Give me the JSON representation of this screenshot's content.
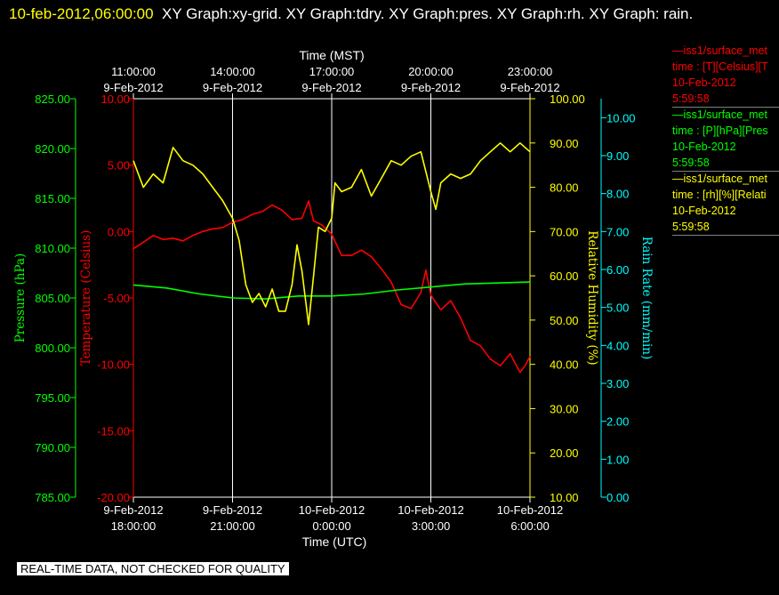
{
  "header": {
    "timestamp": "10-feb-2012,06:00:00",
    "graph_list": "XY Graph:xy-grid.  XY Graph:tdry.  XY Graph:pres.  XY Graph:rh.  XY Graph: rain."
  },
  "colors": {
    "background": "#000000",
    "temperature": "#ff0000",
    "pressure": "#00ff00",
    "humidity": "#ffff00",
    "rain": "#00ffff",
    "grid": "#ffffff"
  },
  "legend": [
    {
      "line": "—iss1/surface_met",
      "desc": "time : [T][Celsius][T",
      "date": "10-Feb-2012",
      "time": "5:59:58",
      "color": "#ff0000"
    },
    {
      "line": "—iss1/surface_met",
      "desc": "time : [P][hPa][Pres",
      "date": "10-Feb-2012",
      "time": "5:59:58",
      "color": "#00ff00"
    },
    {
      "line": "—iss1/surface_met",
      "desc": "time : [rh][%][Relati",
      "date": "10-Feb-2012",
      "time": "5:59:58",
      "color": "#ffff00"
    }
  ],
  "warning": "REAL-TIME DATA, NOT CHECKED FOR QUALITY",
  "chart_data": {
    "type": "line",
    "x_top_title": "Time (MST)",
    "x_bottom_title": "Time (UTC)",
    "x_range_utc_hours_from_2012_02_09_00": [
      18,
      30
    ],
    "x_ticks_top": [
      {
        "time": "11:00:00",
        "date": "9-Feb-2012"
      },
      {
        "time": "14:00:00",
        "date": "9-Feb-2012"
      },
      {
        "time": "17:00:00",
        "date": "9-Feb-2012"
      },
      {
        "time": "20:00:00",
        "date": "9-Feb-2012"
      },
      {
        "time": "23:00:00",
        "date": "9-Feb-2012"
      }
    ],
    "x_ticks_bottom": [
      {
        "date": "9-Feb-2012",
        "time": "18:00:00"
      },
      {
        "date": "9-Feb-2012",
        "time": "21:00:00"
      },
      {
        "date": "10-Feb-2012",
        "time": "0:00:00"
      },
      {
        "date": "10-Feb-2012",
        "time": "3:00:00"
      },
      {
        "date": "10-Feb-2012",
        "time": "6:00:00"
      }
    ],
    "grid_vertical": true,
    "axes": [
      {
        "key": "pressure",
        "label": "Pressure (hPa)",
        "range": [
          785,
          825
        ],
        "ticks": [
          "785.00",
          "790.00",
          "795.00",
          "800.00",
          "805.00",
          "810.00",
          "815.00",
          "820.00",
          "825.00"
        ]
      },
      {
        "key": "temperature",
        "label": "Temperature (Celsius)",
        "range": [
          -20,
          10
        ],
        "ticks": [
          "-20.00",
          "-15.00",
          "-10.00",
          "-5.00",
          "0.00",
          "5.00",
          "10.00"
        ]
      },
      {
        "key": "humidity",
        "label": "Relative Humidity (%)",
        "range": [
          10,
          100
        ],
        "ticks": [
          "10.00",
          "20.00",
          "30.00",
          "40.00",
          "50.00",
          "60.00",
          "70.00",
          "80.00",
          "90.00",
          "100.00"
        ]
      },
      {
        "key": "rain",
        "label": "Rain Rate (mm/min)",
        "range": [
          0,
          10.5
        ],
        "ticks": [
          "0.00",
          "1.00",
          "2.00",
          "3.00",
          "4.00",
          "5.00",
          "6.00",
          "7.00",
          "8.00",
          "9.00",
          "10.00"
        ]
      }
    ],
    "series": [
      {
        "key": "temperature",
        "name": "iss1/surface_met T",
        "color": "#ff0000",
        "points": [
          [
            18.0,
            -1.3
          ],
          [
            18.3,
            -0.8
          ],
          [
            18.6,
            -0.3
          ],
          [
            18.9,
            -0.6
          ],
          [
            19.2,
            -0.5
          ],
          [
            19.5,
            -0.7
          ],
          [
            19.8,
            -0.3
          ],
          [
            20.1,
            0.0
          ],
          [
            20.4,
            0.2
          ],
          [
            20.7,
            0.3
          ],
          [
            21.0,
            0.7
          ],
          [
            21.3,
            0.9
          ],
          [
            21.6,
            1.3
          ],
          [
            21.9,
            1.5
          ],
          [
            22.2,
            2.0
          ],
          [
            22.5,
            1.6
          ],
          [
            22.8,
            0.9
          ],
          [
            23.1,
            1.0
          ],
          [
            23.3,
            2.3
          ],
          [
            23.45,
            0.8
          ],
          [
            23.7,
            0.5
          ],
          [
            24.0,
            -0.2
          ],
          [
            24.3,
            -1.8
          ],
          [
            24.6,
            -1.8
          ],
          [
            24.9,
            -1.4
          ],
          [
            25.2,
            -1.9
          ],
          [
            25.5,
            -2.8
          ],
          [
            25.8,
            -3.8
          ],
          [
            26.1,
            -5.5
          ],
          [
            26.4,
            -5.8
          ],
          [
            26.7,
            -4.6
          ],
          [
            26.85,
            -2.9
          ],
          [
            27.0,
            -4.8
          ],
          [
            27.3,
            -5.9
          ],
          [
            27.6,
            -5.2
          ],
          [
            27.9,
            -6.5
          ],
          [
            28.2,
            -8.2
          ],
          [
            28.5,
            -8.6
          ],
          [
            28.8,
            -9.6
          ],
          [
            29.1,
            -10.1
          ],
          [
            29.4,
            -9.2
          ],
          [
            29.7,
            -10.6
          ],
          [
            29.85,
            -10.1
          ],
          [
            30.0,
            -9.4
          ]
        ]
      },
      {
        "key": "pressure",
        "name": "iss1/surface_met P",
        "color": "#00ff00",
        "points": [
          [
            18.0,
            806.3
          ],
          [
            19.0,
            806.0
          ],
          [
            20.0,
            805.4
          ],
          [
            21.0,
            805.0
          ],
          [
            22.0,
            804.9
          ],
          [
            23.0,
            805.2
          ],
          [
            24.0,
            805.2
          ],
          [
            25.0,
            805.4
          ],
          [
            26.0,
            805.8
          ],
          [
            27.0,
            806.1
          ],
          [
            28.0,
            806.4
          ],
          [
            29.0,
            806.5
          ],
          [
            30.0,
            806.6
          ]
        ]
      },
      {
        "key": "humidity",
        "name": "iss1/surface_met rh",
        "color": "#ffff00",
        "points": [
          [
            18.0,
            86.0
          ],
          [
            18.3,
            80.0
          ],
          [
            18.6,
            83.0
          ],
          [
            18.9,
            81.0
          ],
          [
            19.2,
            89.0
          ],
          [
            19.5,
            86.0
          ],
          [
            19.8,
            85.0
          ],
          [
            20.1,
            83.0
          ],
          [
            20.4,
            80.0
          ],
          [
            20.7,
            77.0
          ],
          [
            21.0,
            73.0
          ],
          [
            21.2,
            68.0
          ],
          [
            21.4,
            58.0
          ],
          [
            21.6,
            54.0
          ],
          [
            21.8,
            56.0
          ],
          [
            22.0,
            53.0
          ],
          [
            22.2,
            57.0
          ],
          [
            22.4,
            52.0
          ],
          [
            22.6,
            52.0
          ],
          [
            22.8,
            58.0
          ],
          [
            22.95,
            67.0
          ],
          [
            23.1,
            61.0
          ],
          [
            23.3,
            49.0
          ],
          [
            23.45,
            60.0
          ],
          [
            23.6,
            71.0
          ],
          [
            23.8,
            70.0
          ],
          [
            24.0,
            73.0
          ],
          [
            24.1,
            81.0
          ],
          [
            24.3,
            79.0
          ],
          [
            24.6,
            80.0
          ],
          [
            24.9,
            84.0
          ],
          [
            25.2,
            78.0
          ],
          [
            25.5,
            82.0
          ],
          [
            25.8,
            86.0
          ],
          [
            26.1,
            85.0
          ],
          [
            26.4,
            87.0
          ],
          [
            26.7,
            88.0
          ],
          [
            27.0,
            79.0
          ],
          [
            27.15,
            75.0
          ],
          [
            27.3,
            81.0
          ],
          [
            27.6,
            83.0
          ],
          [
            27.9,
            82.0
          ],
          [
            28.2,
            83.0
          ],
          [
            28.5,
            86.0
          ],
          [
            28.8,
            88.0
          ],
          [
            29.1,
            90.0
          ],
          [
            29.4,
            88.0
          ],
          [
            29.7,
            90.0
          ],
          [
            30.0,
            88.0
          ]
        ]
      }
    ]
  }
}
